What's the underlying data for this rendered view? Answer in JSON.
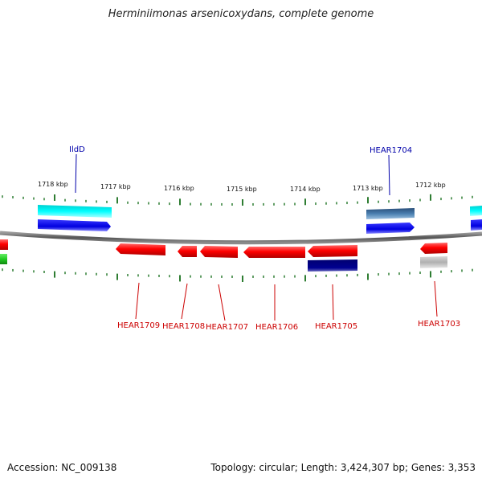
{
  "title": "Herminiimonas arsenicoxydans, complete genome",
  "footer": {
    "accession": "Accession: NC_009138",
    "stats": "Topology: circular; Length: 3,424,307 bp; Genes: 3,353"
  },
  "ticks": [
    "1718 kbp",
    "1717 kbp",
    "1716 kbp",
    "1715 kbp",
    "1714 kbp",
    "1713 kbp",
    "1712 kbp"
  ],
  "top_labels": [
    "IldD",
    "HEAR1704"
  ],
  "bottom_labels": [
    "HEAR1709",
    "HEAR1708",
    "HEAR1707",
    "HEAR1706",
    "HEAR1705",
    "HEAR1703"
  ],
  "colors": {
    "forward_cds": "#1a1aff",
    "reverse_cds": "#ff0000",
    "cyan_track": "#00e5e5",
    "steel_track": "#4a7fb0",
    "navy_track": "#000080",
    "gray_track": "#b0b0b0",
    "green_track": "#22cc22",
    "tick_color": "#2e7d32",
    "top_label_color": "#0000aa",
    "bottom_label_color": "#cc0000"
  }
}
